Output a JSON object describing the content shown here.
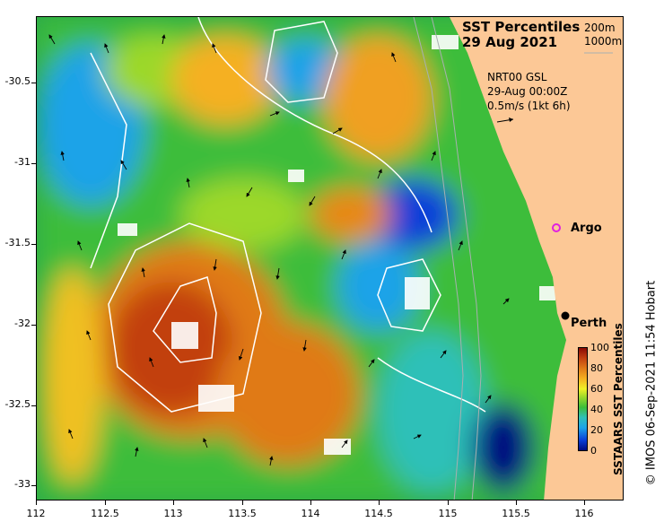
{
  "title": {
    "line1": "SST Percentiles",
    "line2": "29 Aug 2021"
  },
  "depth_legend": {
    "contour_1": "200m",
    "contour_2": "1000m"
  },
  "info": {
    "line1": "NRT00 GSL",
    "line2": "29-Aug 00:00Z",
    "line3": "0.5m/s (1kt 6h)"
  },
  "places": [
    {
      "name": "Argo",
      "marker_color": "#e020e0"
    },
    {
      "name": "Perth",
      "marker_color": "#000000"
    }
  ],
  "axes": {
    "y_ticks": [
      "-30.5",
      "-31",
      "-31.5",
      "-32",
      "-32.5",
      "-33"
    ],
    "x_ticks": [
      "112",
      "112.5",
      "113",
      "113.5",
      "114",
      "114.5",
      "115",
      "115.5",
      "116"
    ]
  },
  "colorbar": {
    "title": "SSTAARS SST Percentiles",
    "ticks": [
      "100",
      "80",
      "60",
      "40",
      "20",
      "0"
    ],
    "range": [
      0,
      100
    ]
  },
  "credit": "© IMOS 06-Sep-2021 11:54 Hobart",
  "colors": {
    "land": "#fcc896",
    "contour": "#ffffff",
    "deep_contour": "#a8b0b0"
  }
}
